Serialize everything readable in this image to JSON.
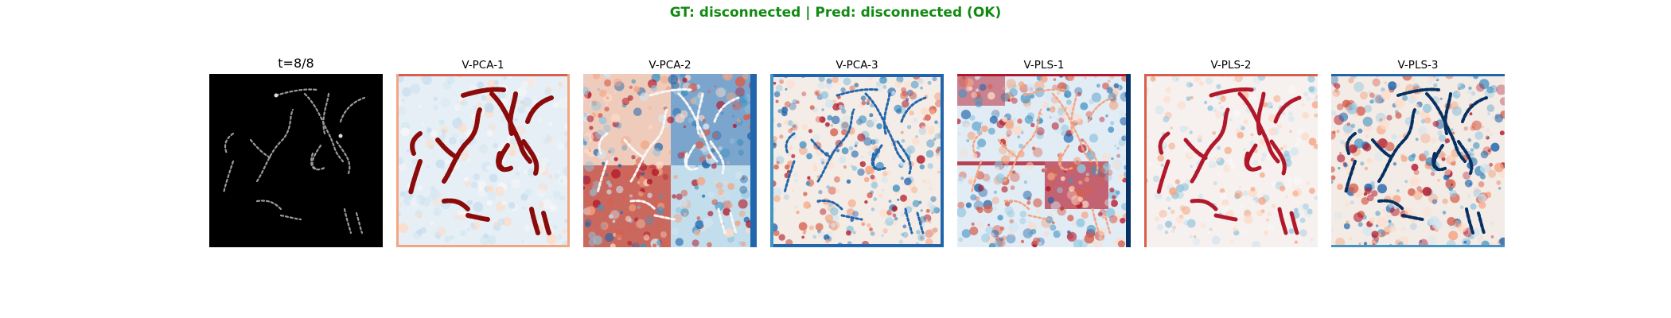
{
  "figure": {
    "suptitle": "GT: disconnected | Pred: disconnected (OK)",
    "suptitle_color": "#138a13"
  },
  "panels": [
    {
      "title": "t=8/8",
      "colormap": "gray"
    },
    {
      "title": "V-PCA-1",
      "colormap": "RdBu_r"
    },
    {
      "title": "V-PCA-2",
      "colormap": "RdBu_r"
    },
    {
      "title": "V-PCA-3",
      "colormap": "RdBu_r"
    },
    {
      "title": "V-PLS-1",
      "colormap": "RdBu_r"
    },
    {
      "title": "V-PLS-2",
      "colormap": "RdBu_r"
    },
    {
      "title": "V-PLS-3",
      "colormap": "RdBu_r"
    }
  ]
}
